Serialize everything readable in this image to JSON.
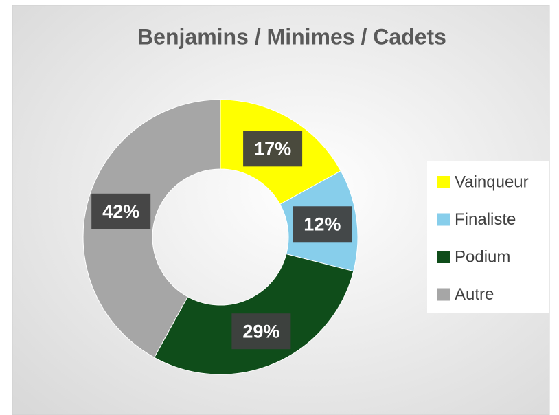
{
  "chart_data": {
    "type": "donut",
    "title": "Benjamins / Minimes / Cadets",
    "categories": [
      "Vainqueur",
      "Finaliste",
      "Podium",
      "Autre"
    ],
    "values": [
      17,
      12,
      29,
      42
    ],
    "value_labels": [
      "17%",
      "12%",
      "29%",
      "42%"
    ],
    "colors": [
      "#ffff00",
      "#87ceeb",
      "#0f4d1a",
      "#a6a6a6"
    ],
    "legend": "right"
  }
}
